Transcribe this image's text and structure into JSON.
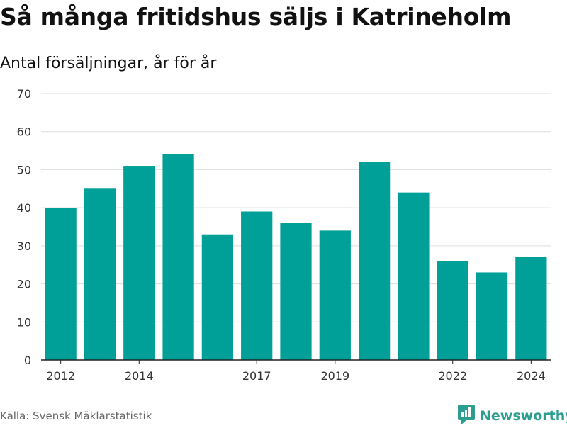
{
  "header": {
    "title": "Så många fritidshus säljs i Katrineholm",
    "subtitle": "Antal försäljningar, år för år"
  },
  "footer": {
    "source": "Källa: Svensk Mäklarstatistik",
    "brand": "Newsworthy",
    "brand_icon": "newsworthy-logo-icon"
  },
  "colors": {
    "bar": "#00a098",
    "brand": "#2b9e8f",
    "grid": "#dddddd",
    "axis": "#222222"
  },
  "chart_data": {
    "type": "bar",
    "title": "Så många fritidshus säljs i Katrineholm",
    "subtitle": "Antal försäljningar, år för år",
    "x": [
      2012,
      2013,
      2014,
      2015,
      2016,
      2017,
      2018,
      2019,
      2020,
      2021,
      2022,
      2023,
      2024
    ],
    "values": [
      40,
      45,
      51,
      54,
      33,
      39,
      36,
      34,
      52,
      44,
      26,
      23,
      27
    ],
    "x_tick_labels": [
      "2012",
      "2014",
      "2017",
      "2019",
      "2022",
      "2024"
    ],
    "y_ticks": [
      0,
      10,
      20,
      30,
      40,
      50,
      60,
      70
    ],
    "ylim": [
      0,
      70
    ],
    "grid": true,
    "legend": "none"
  }
}
